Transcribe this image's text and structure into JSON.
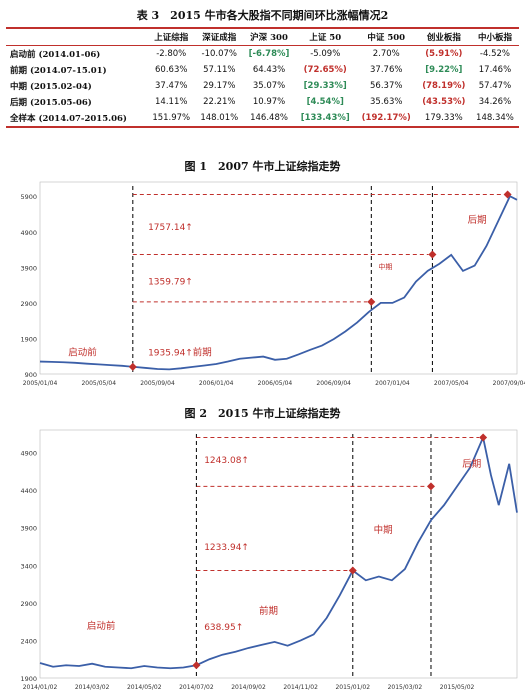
{
  "table": {
    "caption": "表 3　2015 牛市各大股指不同期间环比涨幅情况2",
    "headers": [
      "",
      "上证综指",
      "深证成指",
      "沪深 300",
      "上证 50",
      "中证 500",
      "创业板指",
      "中小板指"
    ],
    "rows": [
      {
        "label": "启动前 (2014.01-06)",
        "cells": [
          {
            "v": "-2.80%"
          },
          {
            "v": "-10.07%"
          },
          {
            "v": "[-6.78%]",
            "c": "pos"
          },
          {
            "v": "-5.09%"
          },
          {
            "v": "2.70%"
          },
          {
            "v": "(5.91%)",
            "c": "neg"
          },
          {
            "v": "-4.52%"
          }
        ]
      },
      {
        "label": "前期 (2014.07-15.01)",
        "cells": [
          {
            "v": "60.63%"
          },
          {
            "v": "57.11%"
          },
          {
            "v": "64.43%"
          },
          {
            "v": "(72.65%)",
            "c": "neg"
          },
          {
            "v": "37.76%"
          },
          {
            "v": "[9.22%]",
            "c": "pos"
          },
          {
            "v": "17.46%"
          }
        ]
      },
      {
        "label": "中期 (2015.02-04)",
        "cells": [
          {
            "v": "37.47%"
          },
          {
            "v": "29.17%"
          },
          {
            "v": "35.07%"
          },
          {
            "v": "[29.33%]",
            "c": "pos"
          },
          {
            "v": "56.37%"
          },
          {
            "v": "(78.19%)",
            "c": "neg"
          },
          {
            "v": "57.47%"
          }
        ]
      },
      {
        "label": "后期 (2015.05-06)",
        "cells": [
          {
            "v": "14.11%"
          },
          {
            "v": "22.21%"
          },
          {
            "v": "10.97%"
          },
          {
            "v": "[4.54%]",
            "c": "pos"
          },
          {
            "v": "35.63%"
          },
          {
            "v": "(43.53%)",
            "c": "neg"
          },
          {
            "v": "34.26%"
          }
        ]
      },
      {
        "label": "全样本 (2014.07-2015.06)",
        "cells": [
          {
            "v": "151.97%"
          },
          {
            "v": "148.01%"
          },
          {
            "v": "146.48%"
          },
          {
            "v": "[133.43%]",
            "c": "pos"
          },
          {
            "v": "(192.17%)",
            "c": "neg"
          },
          {
            "v": "179.33%"
          },
          {
            "v": "148.34%"
          }
        ]
      }
    ]
  },
  "chart_data": [
    {
      "type": "line",
      "title": "图 1　2007 牛市上证综指走势",
      "x_ticks": [
        "2005/01/04",
        "2005/05/04",
        "2005/09/04",
        "2006/01/04",
        "2006/05/04",
        "2006/09/04",
        "2007/01/04",
        "2007/05/04",
        "2007/09/04"
      ],
      "y_ticks": [
        900,
        1900,
        2900,
        3900,
        4900,
        5900
      ],
      "ylim": [
        900,
        6300
      ],
      "period_labels": [
        "启动前",
        "前期",
        "中期",
        "后期"
      ],
      "annotations": [
        "1935.94↑",
        "1359.79↑",
        "1757.14↑"
      ],
      "markers": [
        {
          "x": 3.95,
          "y": 1100
        },
        {
          "x": 14.1,
          "y": 2930
        },
        {
          "x": 16.7,
          "y": 4260
        },
        {
          "x": 19.9,
          "y": 5950
        }
      ],
      "x": [
        0,
        0.5,
        1,
        1.5,
        2,
        2.5,
        3,
        3.5,
        4,
        4.5,
        5,
        5.5,
        6,
        6.5,
        7,
        7.5,
        8,
        8.5,
        9,
        9.5,
        10,
        10.5,
        11,
        11.5,
        12,
        12.5,
        13,
        13.5,
        14,
        14.5,
        15,
        15.5,
        16,
        16.5,
        17,
        17.5,
        18,
        18.5,
        19,
        19.5,
        20,
        20.3
      ],
      "y": [
        1250,
        1240,
        1230,
        1215,
        1190,
        1170,
        1150,
        1130,
        1100,
        1070,
        1040,
        1030,
        1060,
        1100,
        1140,
        1180,
        1250,
        1330,
        1360,
        1390,
        1300,
        1330,
        1450,
        1580,
        1700,
        1880,
        2100,
        2350,
        2650,
        2900,
        2900,
        3050,
        3500,
        3800,
        4000,
        4250,
        3800,
        3950,
        4500,
        5200,
        5900,
        5800
      ]
    },
    {
      "type": "line",
      "title": "图 2　2015 牛市上证综指走势",
      "x_ticks": [
        "2014/01/02",
        "2014/03/02",
        "2014/05/02",
        "2014/07/02",
        "2014/09/02",
        "2014/11/02",
        "2015/01/02",
        "2015/03/02",
        "2015/05/02"
      ],
      "y_ticks": [
        1900,
        2400,
        2900,
        3400,
        3900,
        4400,
        4900
      ],
      "ylim": [
        1900,
        5200
      ],
      "period_labels": [
        "启动前",
        "前期",
        "中期",
        "后期"
      ],
      "annotations": [
        "638.95↑",
        "1233.94↑",
        "1243.08↑"
      ],
      "markers": [
        {
          "x": 6,
          "y": 2070
        },
        {
          "x": 12,
          "y": 3330
        },
        {
          "x": 15,
          "y": 4450
        },
        {
          "x": 17,
          "y": 5100
        }
      ],
      "x": [
        0,
        0.5,
        1,
        1.5,
        2,
        2.5,
        3,
        3.5,
        4,
        4.5,
        5,
        5.5,
        6,
        6.5,
        7,
        7.5,
        8,
        8.5,
        9,
        9.5,
        10,
        10.5,
        11,
        11.5,
        12,
        12.5,
        13,
        13.5,
        14,
        14.5,
        15,
        15.5,
        16,
        16.5,
        17,
        17.3,
        17.6,
        18,
        18.3
      ],
      "y": [
        2100,
        2050,
        2070,
        2060,
        2090,
        2050,
        2040,
        2030,
        2060,
        2040,
        2030,
        2040,
        2070,
        2150,
        2210,
        2250,
        2300,
        2340,
        2380,
        2330,
        2400,
        2480,
        2700,
        3000,
        3330,
        3200,
        3250,
        3200,
        3350,
        3700,
        4000,
        4200,
        4450,
        4700,
        5100,
        4600,
        4200,
        4750,
        4100
      ]
    }
  ]
}
